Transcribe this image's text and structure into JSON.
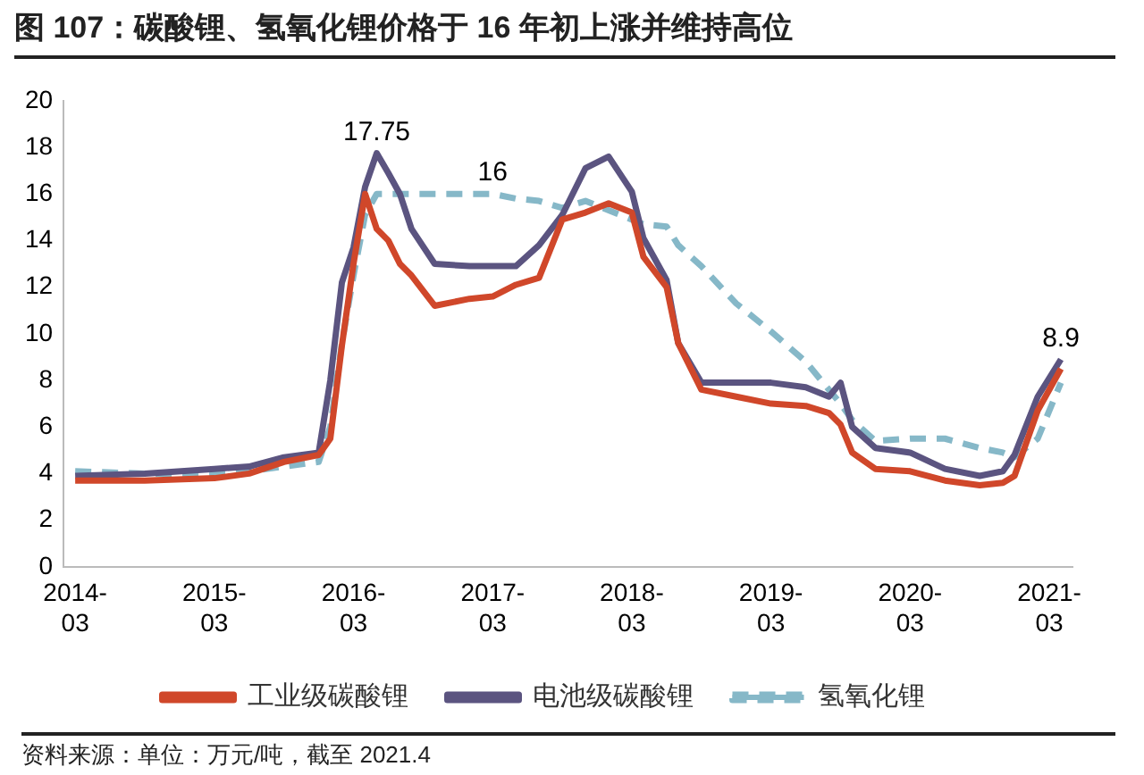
{
  "chart_data": {
    "type": "line",
    "title": "图 107：碳酸锂、氢氧化锂价格于 16 年初上涨并维持高位",
    "x": [
      "2014-03",
      "2014-09",
      "2015-03",
      "2015-06",
      "2015-09",
      "2015-12",
      "2016-01",
      "2016-02",
      "2016-03",
      "2016-04",
      "2016-05",
      "2016-06",
      "2016-07",
      "2016-08",
      "2016-10",
      "2017-01",
      "2017-03",
      "2017-05",
      "2017-07",
      "2017-09",
      "2017-11",
      "2018-01",
      "2018-03",
      "2018-04",
      "2018-06",
      "2018-07",
      "2018-09",
      "2018-12",
      "2019-03",
      "2019-06",
      "2019-08",
      "2019-09",
      "2019-10",
      "2019-12",
      "2020-03",
      "2020-06",
      "2020-09",
      "2020-11",
      "2020-12",
      "2021-02",
      "2021-04"
    ],
    "series": [
      {
        "name": "工业级碳酸锂",
        "color": "#d0472a",
        "values": [
          3.7,
          3.7,
          3.8,
          4.0,
          4.5,
          4.8,
          5.5,
          9.5,
          13,
          16,
          14.5,
          14,
          13,
          12.5,
          11.2,
          11.5,
          11.6,
          12.1,
          12.4,
          14.9,
          15.2,
          15.6,
          15.2,
          13.3,
          12,
          9.6,
          7.6,
          7.3,
          7.0,
          6.9,
          6.6,
          6.1,
          4.9,
          4.2,
          4.1,
          3.7,
          3.5,
          3.6,
          3.9,
          6.7,
          8.5
        ]
      },
      {
        "name": "电池级碳酸锂",
        "color": "#5b5480",
        "values": [
          3.9,
          4.0,
          4.2,
          4.3,
          4.7,
          4.9,
          8,
          12.2,
          13.7,
          16.3,
          17.75,
          16.9,
          16,
          14.5,
          13,
          12.9,
          12.9,
          12.9,
          13.8,
          15.1,
          17.1,
          17.6,
          16.1,
          14.1,
          12.3,
          9.6,
          7.9,
          7.9,
          7.9,
          7.7,
          7.3,
          7.9,
          6.0,
          5.1,
          4.9,
          4.2,
          3.9,
          4.1,
          4.8,
          7.3,
          8.9
        ]
      },
      {
        "name": "氢氧化锂",
        "color": "#86b8c8",
        "line_style": "dashed",
        "values": [
          4.1,
          4.0,
          4.0,
          4.1,
          4.3,
          4.5,
          6,
          9.6,
          12.5,
          15.1,
          16,
          16,
          16,
          16,
          16,
          16,
          16,
          15.8,
          15.7,
          15.4,
          15.7,
          15.3,
          14.9,
          14.7,
          14.6,
          13.8,
          12.9,
          11.3,
          10.1,
          8.8,
          7.6,
          7.0,
          6.3,
          5.4,
          5.5,
          5.5,
          5.1,
          4.9,
          4.7,
          5.5,
          7.9
        ]
      }
    ],
    "xlim": [
      "2014-02",
      "2021-05"
    ],
    "xticks": [
      {
        "value": "2014-03",
        "label": "2014-03"
      },
      {
        "value": "2015-03",
        "label": "2015-03"
      },
      {
        "value": "2016-03",
        "label": "2016-03"
      },
      {
        "value": "2017-03",
        "label": "2017-03"
      },
      {
        "value": "2018-03",
        "label": "2018-03"
      },
      {
        "value": "2019-03",
        "label": "2019-03"
      },
      {
        "value": "2020-03",
        "label": "2020-03"
      },
      {
        "value": "2021-03",
        "label": "2021-03"
      }
    ],
    "ylim": [
      0,
      20
    ],
    "yticks": [
      0,
      2,
      4,
      6,
      8,
      10,
      12,
      14,
      16,
      18,
      20
    ],
    "grid": false,
    "legend": "bottom",
    "marker": "none",
    "line_style": "solid",
    "annotations": [
      {
        "text": "17.75",
        "x": "2016-05",
        "y": 17.75
      },
      {
        "text": "16",
        "x": "2017-03",
        "y": 16
      },
      {
        "text": "8.9",
        "x": "2021-04",
        "y": 8.9
      },
      "资料来源：单位：万元/吨，截至 2021.4"
    ]
  }
}
